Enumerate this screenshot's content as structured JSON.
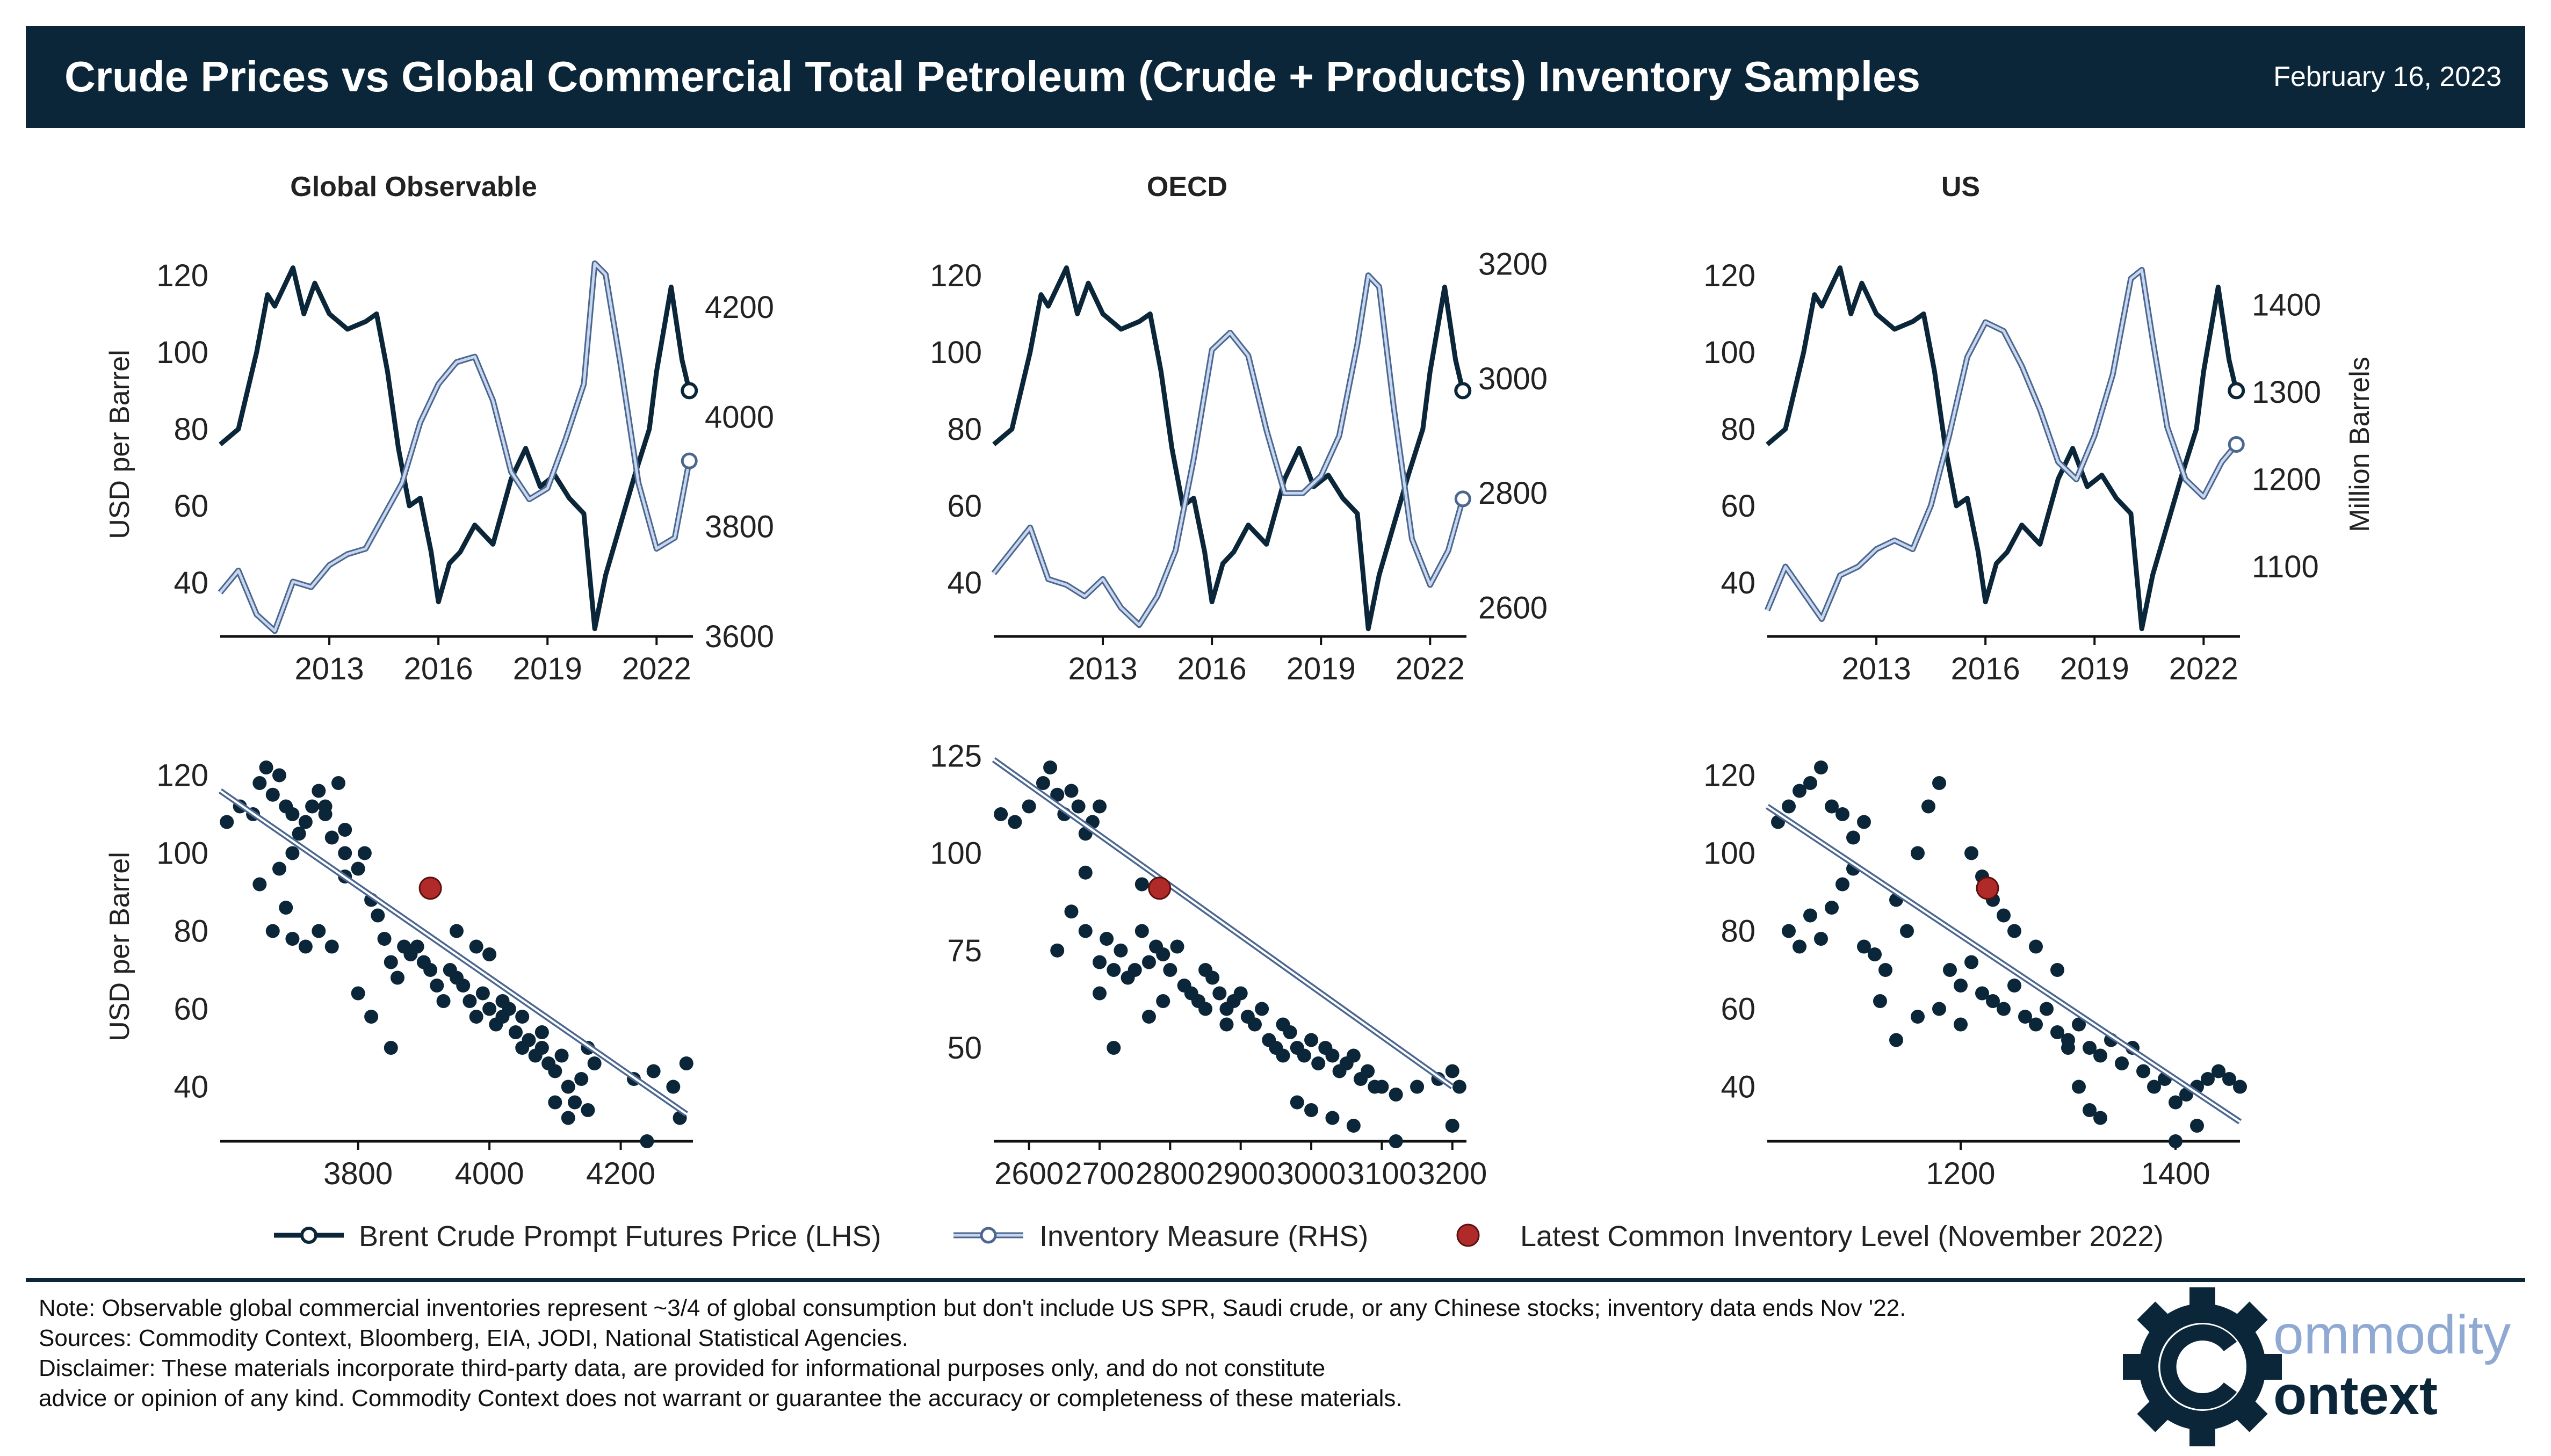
{
  "header": {
    "title": "Crude Prices vs Global Commercial Total Petroleum (Crude + Products) Inventory Samples",
    "date": "February 16, 2023"
  },
  "colors": {
    "price": "#0b2639",
    "inventory": "#9db5db",
    "inventory_edge": "#4b6790",
    "latest": "#b02a2a",
    "header_bg": "#0b2639"
  },
  "legend": {
    "price": "Brent Crude Prompt Futures Price (LHS)",
    "inventory": "Inventory Measure (RHS)",
    "latest": "Latest Common Inventory Level (November 2022)"
  },
  "footer": {
    "note": "Note: Observable global commercial inventories represent ~3/4 of global consumption but don't include US SPR, Saudi crude, or any Chinese stocks; inventory data ends Nov '22.",
    "sources": "Sources: Commodity Context, Bloomberg, EIA, JODI, National Statistical Agencies.",
    "disclaimer_1": "Disclaimer: These materials incorporate third-party data, are provided for informational purposes only, and do not constitute",
    "disclaimer_2": "advice or opinion of any kind. Commodity Context does not warrant or guarantee the accuracy or completeness of these materials."
  },
  "logo": {
    "line1": "ommodity",
    "line2": "ontext"
  },
  "chart_data": [
    {
      "type": "line",
      "panel": "Global Observable",
      "title": "Global Observable",
      "ylabel": "USD per Barrel",
      "y2label": "",
      "xlim": [
        2010,
        2023.0
      ],
      "xticks": [
        2013,
        2016,
        2019,
        2022
      ],
      "ylim": [
        26,
        126
      ],
      "yticks": [
        40,
        60,
        80,
        100,
        120
      ],
      "y2lim": [
        3600,
        4300
      ],
      "y2ticks": [
        3600,
        3800,
        4000,
        4200
      ],
      "series": [
        {
          "name": "Brent Crude Prompt Futures Price (LHS)",
          "axis": "left",
          "x": [
            2010.0,
            2010.5,
            2011.0,
            2011.3,
            2011.5,
            2012.0,
            2012.3,
            2012.6,
            2013.0,
            2013.5,
            2014.0,
            2014.3,
            2014.6,
            2014.9,
            2015.2,
            2015.5,
            2015.8,
            2016.0,
            2016.3,
            2016.6,
            2017.0,
            2017.5,
            2018.0,
            2018.4,
            2018.8,
            2019.2,
            2019.6,
            2020.0,
            2020.3,
            2020.6,
            2021.0,
            2021.4,
            2021.8,
            2022.0,
            2022.4,
            2022.7,
            2022.9
          ],
          "y": [
            76,
            80,
            100,
            115,
            112,
            122,
            110,
            118,
            110,
            106,
            108,
            110,
            95,
            75,
            60,
            62,
            48,
            35,
            45,
            48,
            55,
            50,
            67,
            75,
            65,
            68,
            62,
            58,
            28,
            42,
            55,
            68,
            80,
            95,
            117,
            98,
            90
          ]
        },
        {
          "name": "Inventory Measure (RHS)",
          "axis": "right",
          "x": [
            2010.0,
            2010.5,
            2011.0,
            2011.5,
            2012.0,
            2012.5,
            2013.0,
            2013.5,
            2014.0,
            2014.5,
            2015.0,
            2015.5,
            2016.0,
            2016.5,
            2017.0,
            2017.5,
            2018.0,
            2018.5,
            2019.0,
            2019.5,
            2020.0,
            2020.3,
            2020.6,
            2021.0,
            2021.5,
            2022.0,
            2022.5,
            2022.9
          ],
          "y": [
            3680,
            3720,
            3640,
            3610,
            3700,
            3690,
            3730,
            3750,
            3760,
            3820,
            3880,
            3990,
            4060,
            4100,
            4110,
            4030,
            3900,
            3850,
            3870,
            3960,
            4060,
            4280,
            4260,
            4100,
            3880,
            3760,
            3780,
            3920
          ]
        }
      ]
    },
    {
      "type": "line",
      "panel": "OECD",
      "title": "OECD",
      "ylabel": "",
      "y2label": "",
      "xlim": [
        2010,
        2023.0
      ],
      "xticks": [
        2013,
        2016,
        2019,
        2022
      ],
      "ylim": [
        26,
        126
      ],
      "yticks": [
        40,
        60,
        80,
        100,
        120
      ],
      "y2lim": [
        2550,
        3220
      ],
      "y2ticks": [
        2600,
        2800,
        3000,
        3200
      ],
      "series": [
        {
          "name": "Brent Crude Prompt Futures Price (LHS)",
          "axis": "left",
          "x": [
            2010.0,
            2010.5,
            2011.0,
            2011.3,
            2011.5,
            2012.0,
            2012.3,
            2012.6,
            2013.0,
            2013.5,
            2014.0,
            2014.3,
            2014.6,
            2014.9,
            2015.2,
            2015.5,
            2015.8,
            2016.0,
            2016.3,
            2016.6,
            2017.0,
            2017.5,
            2018.0,
            2018.4,
            2018.8,
            2019.2,
            2019.6,
            2020.0,
            2020.3,
            2020.6,
            2021.0,
            2021.4,
            2021.8,
            2022.0,
            2022.4,
            2022.7,
            2022.9
          ],
          "y": [
            76,
            80,
            100,
            115,
            112,
            122,
            110,
            118,
            110,
            106,
            108,
            110,
            95,
            75,
            60,
            62,
            48,
            35,
            45,
            48,
            55,
            50,
            67,
            75,
            65,
            68,
            62,
            58,
            28,
            42,
            55,
            68,
            80,
            95,
            117,
            98,
            90
          ]
        },
        {
          "name": "Inventory Measure (RHS)",
          "axis": "right",
          "x": [
            2010.0,
            2010.5,
            2011.0,
            2011.5,
            2012.0,
            2012.5,
            2013.0,
            2013.5,
            2014.0,
            2014.5,
            2015.0,
            2015.5,
            2016.0,
            2016.5,
            2017.0,
            2017.5,
            2018.0,
            2018.5,
            2019.0,
            2019.5,
            2020.0,
            2020.3,
            2020.6,
            2021.0,
            2021.5,
            2022.0,
            2022.5,
            2022.9
          ],
          "y": [
            2660,
            2700,
            2740,
            2650,
            2640,
            2620,
            2650,
            2600,
            2570,
            2620,
            2700,
            2860,
            3050,
            3080,
            3040,
            2910,
            2800,
            2800,
            2830,
            2900,
            3060,
            3180,
            3160,
            2950,
            2720,
            2640,
            2700,
            2790
          ]
        }
      ]
    },
    {
      "type": "line",
      "panel": "US",
      "title": "US",
      "ylabel": "",
      "y2label": "Million Barrels",
      "xlim": [
        2010,
        2023.0
      ],
      "xticks": [
        2013,
        2016,
        2019,
        2022
      ],
      "ylim": [
        26,
        126
      ],
      "yticks": [
        40,
        60,
        80,
        100,
        120
      ],
      "y2lim": [
        1020,
        1460
      ],
      "y2ticks": [
        1100,
        1200,
        1300,
        1400
      ],
      "series": [
        {
          "name": "Brent Crude Prompt Futures Price (LHS)",
          "axis": "left",
          "x": [
            2010.0,
            2010.5,
            2011.0,
            2011.3,
            2011.5,
            2012.0,
            2012.3,
            2012.6,
            2013.0,
            2013.5,
            2014.0,
            2014.3,
            2014.6,
            2014.9,
            2015.2,
            2015.5,
            2015.8,
            2016.0,
            2016.3,
            2016.6,
            2017.0,
            2017.5,
            2018.0,
            2018.4,
            2018.8,
            2019.2,
            2019.6,
            2020.0,
            2020.3,
            2020.6,
            2021.0,
            2021.4,
            2021.8,
            2022.0,
            2022.4,
            2022.7,
            2022.9
          ],
          "y": [
            76,
            80,
            100,
            115,
            112,
            122,
            110,
            118,
            110,
            106,
            108,
            110,
            95,
            75,
            60,
            62,
            48,
            35,
            45,
            48,
            55,
            50,
            67,
            75,
            65,
            68,
            62,
            58,
            28,
            42,
            55,
            68,
            80,
            95,
            117,
            98,
            90
          ]
        },
        {
          "name": "Inventory Measure (RHS)",
          "axis": "right",
          "x": [
            2010.0,
            2010.5,
            2011.0,
            2011.5,
            2012.0,
            2012.5,
            2013.0,
            2013.5,
            2014.0,
            2014.5,
            2015.0,
            2015.5,
            2016.0,
            2016.5,
            2017.0,
            2017.5,
            2018.0,
            2018.5,
            2019.0,
            2019.5,
            2020.0,
            2020.3,
            2020.6,
            2021.0,
            2021.5,
            2022.0,
            2022.5,
            2022.9
          ],
          "y": [
            1050,
            1100,
            1070,
            1040,
            1090,
            1100,
            1120,
            1130,
            1120,
            1170,
            1250,
            1340,
            1380,
            1370,
            1330,
            1280,
            1220,
            1200,
            1250,
            1320,
            1430,
            1440,
            1360,
            1260,
            1200,
            1180,
            1220,
            1240
          ]
        }
      ]
    },
    {
      "type": "scatter",
      "panel": "Global Observable",
      "ylabel": "USD per Barrel",
      "xlim": [
        3590,
        4310
      ],
      "xticks": [
        3800,
        4000,
        4200
      ],
      "ylim": [
        26,
        126
      ],
      "yticks": [
        40,
        60,
        80,
        100,
        120
      ],
      "trend": {
        "x": [
          3590,
          4300
        ],
        "y": [
          116,
          33
        ]
      },
      "latest": {
        "x": 3910,
        "y": 91
      },
      "x": [
        3600,
        3620,
        3640,
        3650,
        3660,
        3670,
        3680,
        3690,
        3700,
        3710,
        3720,
        3730,
        3740,
        3750,
        3760,
        3770,
        3780,
        3650,
        3670,
        3690,
        3700,
        3720,
        3740,
        3760,
        3780,
        3800,
        3810,
        3820,
        3830,
        3840,
        3850,
        3860,
        3870,
        3880,
        3890,
        3900,
        3910,
        3920,
        3930,
        3940,
        3950,
        3960,
        3970,
        3980,
        3990,
        4000,
        4010,
        4020,
        4030,
        4040,
        4050,
        4060,
        4070,
        4080,
        4090,
        4100,
        4110,
        4120,
        4130,
        4140,
        4150,
        4160,
        3800,
        3820,
        3850,
        3700,
        3680,
        3750,
        3780,
        3950,
        3980,
        4000,
        4020,
        4050,
        4080,
        4100,
        4120,
        4150,
        4220,
        4250,
        4280,
        4300,
        4240,
        4290
      ],
      "y": [
        108,
        112,
        110,
        118,
        122,
        115,
        120,
        112,
        110,
        105,
        108,
        112,
        116,
        110,
        104,
        118,
        100,
        92,
        80,
        86,
        78,
        76,
        80,
        76,
        94,
        96,
        100,
        88,
        84,
        78,
        72,
        68,
        76,
        74,
        76,
        72,
        70,
        66,
        62,
        70,
        68,
        66,
        62,
        58,
        64,
        60,
        56,
        58,
        60,
        54,
        50,
        52,
        48,
        50,
        46,
        44,
        48,
        40,
        36,
        42,
        50,
        46,
        64,
        58,
        50,
        100,
        96,
        112,
        106,
        80,
        76,
        74,
        62,
        58,
        54,
        36,
        32,
        34,
        42,
        44,
        40,
        46,
        26,
        32
      ]
    },
    {
      "type": "scatter",
      "panel": "OECD",
      "ylabel": "",
      "xlim": [
        2550,
        3220
      ],
      "xticks": [
        2600,
        2700,
        2800,
        2900,
        3000,
        3100,
        3200
      ],
      "ylim": [
        26,
        126
      ],
      "yticks": [
        50,
        75,
        100,
        125
      ],
      "trend": {
        "x": [
          2550,
          3200
        ],
        "y": [
          124,
          40
        ]
      },
      "latest": {
        "x": 2785,
        "y": 91
      },
      "x": [
        2560,
        2580,
        2600,
        2620,
        2630,
        2640,
        2650,
        2660,
        2670,
        2680,
        2690,
        2700,
        2640,
        2660,
        2680,
        2700,
        2710,
        2720,
        2730,
        2740,
        2750,
        2760,
        2770,
        2780,
        2790,
        2800,
        2810,
        2820,
        2830,
        2840,
        2850,
        2860,
        2870,
        2880,
        2890,
        2900,
        2910,
        2920,
        2930,
        2940,
        2950,
        2960,
        2970,
        2980,
        2990,
        3000,
        3010,
        3020,
        3030,
        3040,
        3050,
        3060,
        3070,
        3080,
        3090,
        3100,
        3120,
        3150,
        3180,
        3200,
        3210,
        2700,
        2720,
        2680,
        2760,
        2770,
        2790,
        2850,
        2880,
        2960,
        2980,
        3000,
        3030,
        3060,
        3120,
        3200
      ],
      "y": [
        110,
        108,
        112,
        118,
        122,
        115,
        110,
        116,
        112,
        105,
        108,
        112,
        75,
        85,
        80,
        72,
        78,
        70,
        75,
        68,
        70,
        80,
        72,
        76,
        74,
        70,
        76,
        66,
        64,
        62,
        70,
        68,
        64,
        60,
        62,
        64,
        58,
        56,
        60,
        52,
        50,
        56,
        54,
        50,
        48,
        52,
        46,
        50,
        48,
        44,
        46,
        48,
        42,
        44,
        40,
        40,
        38,
        40,
        42,
        44,
        40,
        64,
        50,
        95,
        92,
        58,
        62,
        60,
        56,
        48,
        36,
        34,
        32,
        30,
        26,
        30
      ]
    },
    {
      "type": "scatter",
      "panel": "US",
      "ylabel": "",
      "xlim": [
        1020,
        1460
      ],
      "xticks": [
        1200,
        1400
      ],
      "ylim": [
        26,
        126
      ],
      "yticks": [
        40,
        60,
        80,
        100,
        120
      ],
      "trend": {
        "x": [
          1020,
          1460
        ],
        "y": [
          112,
          31
        ]
      },
      "latest": {
        "x": 1225,
        "y": 91
      },
      "x": [
        1030,
        1040,
        1050,
        1060,
        1070,
        1080,
        1090,
        1100,
        1110,
        1040,
        1050,
        1060,
        1070,
        1080,
        1090,
        1100,
        1110,
        1120,
        1130,
        1140,
        1150,
        1160,
        1170,
        1180,
        1190,
        1200,
        1210,
        1220,
        1230,
        1240,
        1250,
        1260,
        1270,
        1280,
        1290,
        1300,
        1310,
        1320,
        1330,
        1340,
        1350,
        1360,
        1370,
        1380,
        1390,
        1400,
        1410,
        1420,
        1430,
        1440,
        1450,
        1460,
        1125,
        1140,
        1160,
        1180,
        1200,
        1210,
        1220,
        1230,
        1240,
        1250,
        1270,
        1290,
        1300,
        1310,
        1320,
        1330,
        1400,
        1420
      ],
      "y": [
        108,
        112,
        116,
        118,
        122,
        112,
        110,
        104,
        108,
        80,
        76,
        84,
        78,
        86,
        92,
        96,
        76,
        74,
        70,
        88,
        80,
        100,
        112,
        118,
        70,
        66,
        72,
        64,
        62,
        60,
        66,
        58,
        56,
        60,
        54,
        52,
        56,
        50,
        48,
        52,
        46,
        50,
        44,
        40,
        42,
        36,
        38,
        40,
        42,
        44,
        42,
        40,
        62,
        52,
        58,
        60,
        56,
        100,
        94,
        88,
        84,
        80,
        76,
        70,
        50,
        40,
        34,
        32,
        26,
        30
      ]
    }
  ]
}
